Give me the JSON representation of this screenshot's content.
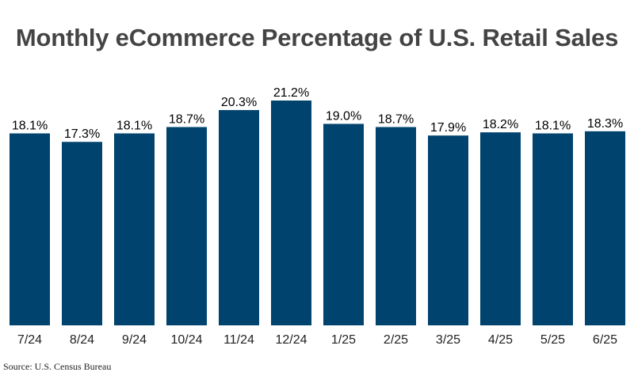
{
  "chart_data": {
    "type": "bar",
    "title": "Monthly eCommerce Percentage of U.S. Retail Sales",
    "categories": [
      "7/24",
      "8/24",
      "9/24",
      "10/24",
      "11/24",
      "12/24",
      "1/25",
      "2/25",
      "3/25",
      "4/25",
      "5/25",
      "6/25"
    ],
    "values": [
      18.1,
      17.3,
      18.1,
      18.7,
      20.3,
      21.2,
      19.0,
      18.7,
      17.9,
      18.2,
      18.1,
      18.3
    ],
    "data_labels": [
      "18.1%",
      "17.3%",
      "18.1%",
      "18.7%",
      "20.3%",
      "21.2%",
      "19.0%",
      "18.7%",
      "17.9%",
      "18.2%",
      "18.1%",
      "18.3%"
    ],
    "xlabel": "",
    "ylabel": "",
    "ylim": [
      0,
      21.2
    ],
    "grid": false,
    "bar_color": "#00436e",
    "source": "Source: U.S. Census Bureau"
  }
}
